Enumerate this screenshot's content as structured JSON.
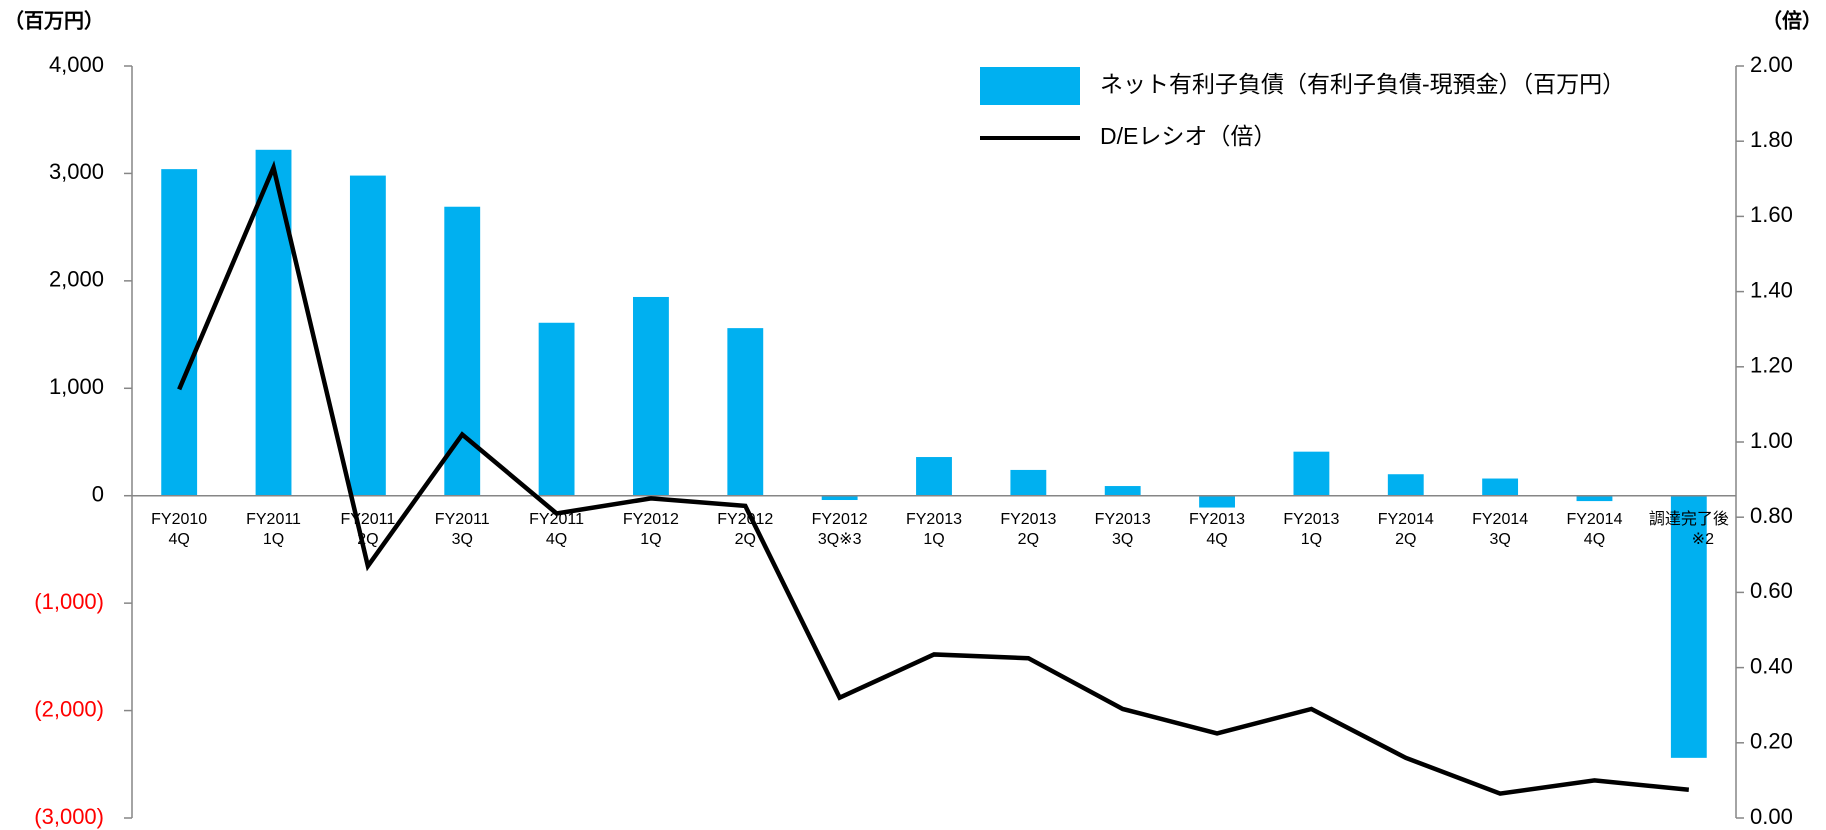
{
  "chart_data": {
    "type": "bar_line",
    "y_label": "（百万円）",
    "y2_label": "（倍）",
    "categories": [
      [
        "FY2010",
        "4Q"
      ],
      [
        "FY2011",
        "1Q"
      ],
      [
        "FY2011",
        "2Q"
      ],
      [
        "FY2011",
        "3Q"
      ],
      [
        "FY2011",
        "4Q"
      ],
      [
        "FY2012",
        "1Q"
      ],
      [
        "FY2012",
        "2Q"
      ],
      [
        "FY2012",
        "3Q※3"
      ],
      [
        "FY2013",
        "1Q"
      ],
      [
        "FY2013",
        "2Q"
      ],
      [
        "FY2013",
        "3Q"
      ],
      [
        "FY2013",
        "4Q"
      ],
      [
        "FY2013",
        "1Q"
      ],
      [
        "FY2014",
        "2Q"
      ],
      [
        "FY2014",
        "3Q"
      ],
      [
        "FY2014",
        "4Q"
      ],
      [
        "調達完了後",
        "※2"
      ]
    ],
    "series": [
      {
        "name": "ネット有利子負債（有利子負債-現預金）（百万円）",
        "color": "#00b0f0",
        "type": "bar",
        "values": [
          3040,
          3220,
          2980,
          2690,
          1610,
          1850,
          1560,
          -40,
          360,
          240,
          90,
          -110,
          410,
          200,
          160,
          -50,
          -2440
        ]
      },
      {
        "name": "D/Eレシオ（倍）",
        "color": "#000000",
        "type": "line",
        "axis": "y2",
        "values": [
          1.14,
          1.73,
          0.67,
          1.02,
          0.81,
          0.85,
          0.83,
          0.32,
          0.435,
          0.425,
          0.29,
          0.225,
          0.29,
          0.16,
          0.065,
          0.1,
          0.075
        ]
      }
    ],
    "ylim": [
      -3000,
      4000
    ],
    "yticks": [
      {
        "value": -3000,
        "label": "(3,000)"
      },
      {
        "value": -2000,
        "label": "(2,000)"
      },
      {
        "value": -1000,
        "label": "(1,000)"
      },
      0,
      {
        "value": 1000,
        "label": "1,000"
      },
      {
        "value": 2000,
        "label": "2,000"
      },
      {
        "value": 3000,
        "label": "3,000"
      },
      {
        "value": 4000,
        "label": "4,000"
      }
    ],
    "negative_tick_color": "#ff0000",
    "y2lim": [
      0,
      2
    ],
    "y2ticks": [
      {
        "value": 0,
        "label": "0.00"
      },
      {
        "value": 0.2,
        "label": "0.20"
      },
      {
        "value": 0.4,
        "label": "0.40"
      },
      {
        "value": 0.6,
        "label": "0.60"
      },
      {
        "value": 0.8,
        "label": "0.80"
      },
      {
        "value": 1,
        "label": "1.00"
      },
      {
        "value": 1.2,
        "label": "1.20"
      },
      {
        "value": 1.4,
        "label": "1.40"
      },
      {
        "value": 1.6,
        "label": "1.60"
      },
      {
        "value": 1.8,
        "label": "1.80"
      },
      {
        "value": 2,
        "label": "2.00"
      }
    ],
    "legend": "top-right"
  }
}
